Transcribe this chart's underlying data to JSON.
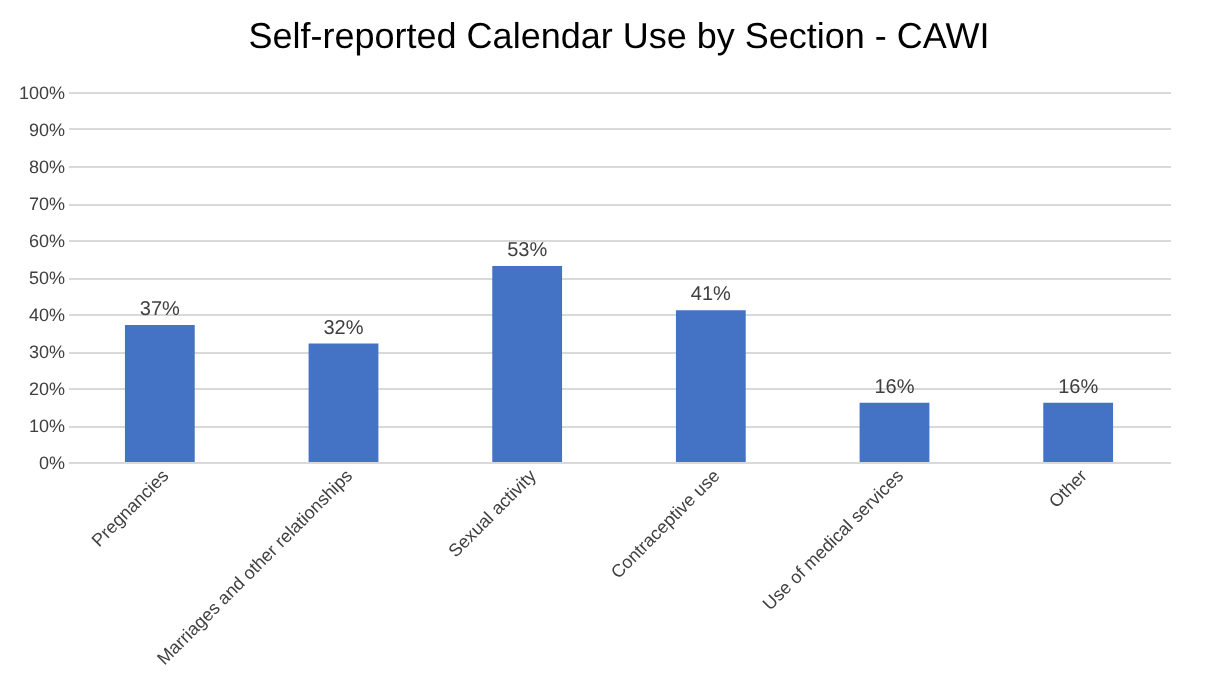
{
  "chart_data": {
    "type": "bar",
    "title": "Self-reported Calendar Use by Section - CAWI",
    "categories": [
      "Pregnancies",
      "Marriages and other relationships",
      "Sexual activity",
      "Contraceptive use",
      "Use of medical services",
      "Other"
    ],
    "values": [
      37,
      32,
      53,
      41,
      16,
      16
    ],
    "value_labels": [
      "37%",
      "32%",
      "53%",
      "41%",
      "16%",
      "16%"
    ],
    "color": "#4472c4",
    "ylim": [
      0,
      100
    ],
    "yticks": [
      {
        "value": 0,
        "label": "0%"
      },
      {
        "value": 10,
        "label": "10%"
      },
      {
        "value": 20,
        "label": "20%"
      },
      {
        "value": 30,
        "label": "30%"
      },
      {
        "value": 40,
        "label": "40%"
      },
      {
        "value": 50,
        "label": "50%"
      },
      {
        "value": 60,
        "label": "60%"
      },
      {
        "value": 70,
        "label": "70%"
      },
      {
        "value": 80,
        "label": "80%"
      },
      {
        "value": 90,
        "label": "90%"
      },
      {
        "value": 100,
        "label": "100%"
      }
    ],
    "grid": "y"
  }
}
